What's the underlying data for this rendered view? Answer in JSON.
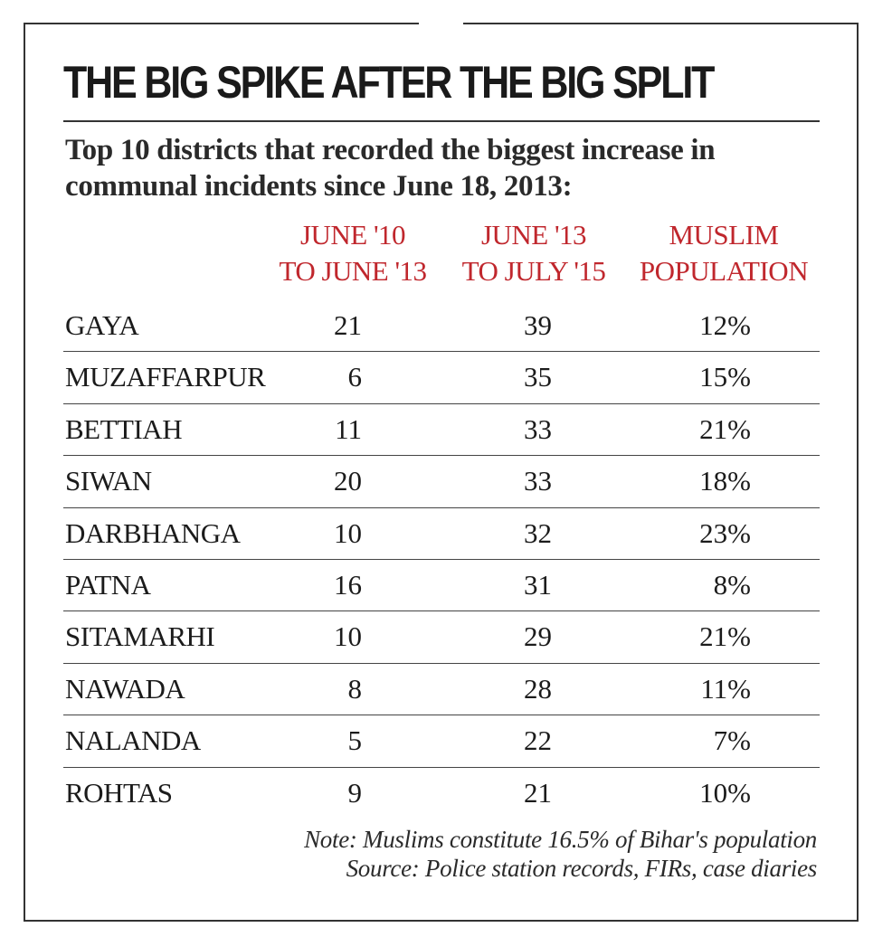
{
  "title": "THE BIG SPIKE AFTER THE BIG SPLIT",
  "subtitle_line1": "Top 10 districts that recorded the biggest increase in",
  "subtitle_line2": "communal incidents since June 18, 2013:",
  "columns": [
    {
      "line1": "JUNE '10",
      "line2": "TO JUNE '13"
    },
    {
      "line1": "JUNE '13",
      "line2": "TO JULY '15"
    },
    {
      "line1": "MUSLIM",
      "line2": "POPULATION"
    }
  ],
  "rows": [
    {
      "district": "GAYA",
      "a": "21",
      "b": "39",
      "c": "12%"
    },
    {
      "district": "MUZAFFARPUR",
      "a": "6",
      "b": "35",
      "c": "15%"
    },
    {
      "district": "BETTIAH",
      "a": "11",
      "b": "33",
      "c": "21%"
    },
    {
      "district": "SIWAN",
      "a": "20",
      "b": "33",
      "c": "18%"
    },
    {
      "district": "DARBHANGA",
      "a": "10",
      "b": "32",
      "c": "23%"
    },
    {
      "district": "PATNA",
      "a": "16",
      "b": "31",
      "c": "8%"
    },
    {
      "district": "SITAMARHI",
      "a": "10",
      "b": "29",
      "c": "21%"
    },
    {
      "district": "NAWADA",
      "a": "8",
      "b": "28",
      "c": "11%"
    },
    {
      "district": "NALANDA",
      "a": "5",
      "b": "22",
      "c": "7%"
    },
    {
      "district": "ROHTAS",
      "a": "9",
      "b": "21",
      "c": "10%"
    }
  ],
  "note": "Note: Muslims constitute 16.5% of Bihar's population",
  "source": "Source: Police station records, FIRs, case diaries",
  "colors": {
    "header_red": "#c0272d",
    "text": "#1b1b1b",
    "rule": "#333333"
  },
  "chart_data": {
    "type": "table",
    "title": "THE BIG SPIKE AFTER THE BIG SPLIT",
    "subtitle": "Top 10 districts that recorded the biggest increase in communal incidents since June 18, 2013:",
    "columns": [
      "JUNE '10 TO JUNE '13",
      "JUNE '13 TO JULY '15",
      "MUSLIM POPULATION"
    ],
    "categories": [
      "GAYA",
      "MUZAFFARPUR",
      "BETTIAH",
      "SIWAN",
      "DARBHANGA",
      "PATNA",
      "SITAMARHI",
      "NAWADA",
      "NALANDA",
      "ROHTAS"
    ],
    "series": [
      {
        "name": "JUNE '10 TO JUNE '13",
        "values": [
          21,
          6,
          11,
          20,
          10,
          16,
          10,
          8,
          5,
          9
        ]
      },
      {
        "name": "JUNE '13 TO JULY '15",
        "values": [
          39,
          35,
          33,
          33,
          32,
          31,
          29,
          28,
          22,
          21
        ]
      },
      {
        "name": "MUSLIM POPULATION (%)",
        "values": [
          12,
          15,
          21,
          18,
          23,
          8,
          21,
          11,
          7,
          10
        ]
      }
    ],
    "annotations": [
      "Note: Muslims constitute 16.5% of Bihar's population",
      "Source: Police station records, FIRs, case diaries"
    ]
  }
}
